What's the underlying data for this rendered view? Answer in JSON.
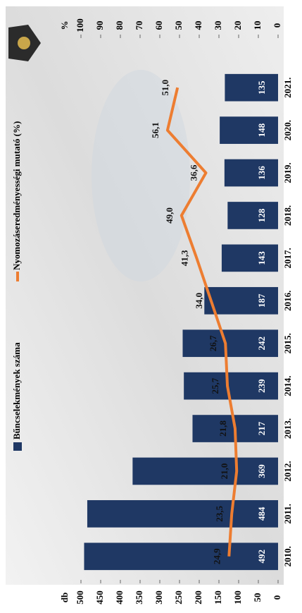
{
  "chart_data": {
    "type": "bar",
    "ylabel": "db",
    "y2label": "%",
    "categories": [
      "2010.",
      "2011.",
      "2012.",
      "2013.",
      "2014.",
      "2015.",
      "2016.",
      "2017.",
      "2018.",
      "2019.",
      "2020.",
      "2021."
    ],
    "series": [
      {
        "name": "Bűncselekmények száma",
        "type": "bar",
        "color": "#1f3864",
        "values": [
          492,
          484,
          369,
          217,
          239,
          242,
          187,
          143,
          128,
          136,
          148,
          135
        ]
      },
      {
        "name": "Nyomozáseredményességi mutató (%)",
        "type": "line",
        "color": "#ed7d31",
        "axis": "y2",
        "values": [
          24.9,
          23.5,
          21.0,
          21.8,
          25.7,
          26.7,
          34.0,
          41.3,
          49.0,
          36.6,
          56.1,
          51.0
        ],
        "value_labels": [
          "24,9",
          "23,5",
          "21,0",
          "21,8",
          "25,7",
          "26,7",
          "34,0",
          "41,3",
          "49,0",
          "36,6",
          "56,1",
          "51,0"
        ]
      }
    ],
    "ylim": [
      0,
      500
    ],
    "yticks": [
      0,
      50,
      100,
      150,
      200,
      250,
      300,
      350,
      400,
      450,
      500
    ],
    "y2lim": [
      0,
      100
    ],
    "y2ticks": [
      0,
      10,
      20,
      30,
      40,
      50,
      60,
      70,
      80,
      90,
      100
    ],
    "grid": false,
    "legend": "top"
  }
}
